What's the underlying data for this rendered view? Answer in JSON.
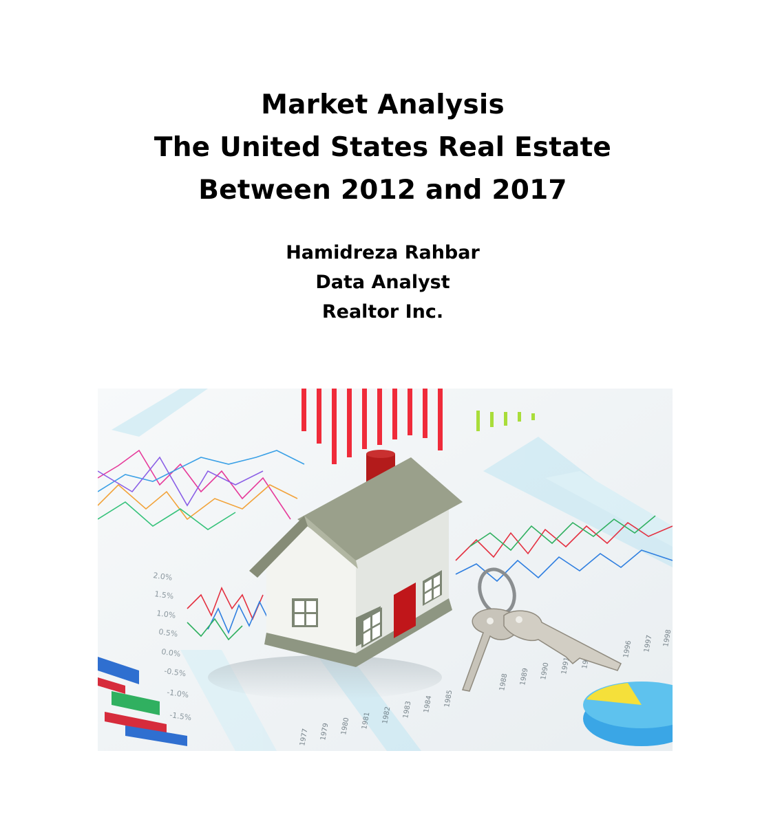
{
  "title": {
    "lines": [
      "Market Analysis",
      "The United States Real Estate",
      "Between 2012 and 2017"
    ]
  },
  "author": {
    "name": "Hamidreza Rahbar",
    "role": "Data Analyst",
    "company": "Realtor Inc."
  },
  "image": {
    "subject": "house-with-keys-on-financial-charts",
    "colors": {
      "roof": "#9aa08b",
      "chimney": "#b31b1b",
      "door": "#c0161a",
      "house_wall": "#f2f2ee",
      "bars_red": "#ef2b3a",
      "bars_green": "#a9dd3a",
      "accent_blue": "#9fd9ee"
    }
  }
}
